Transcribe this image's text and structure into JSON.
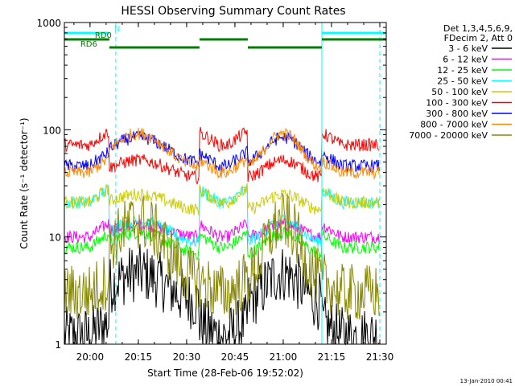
{
  "chart_data": {
    "type": "line",
    "title": "HESSI Observing Summary Count Rates",
    "xlabel": "Start Time (28-Feb-06 19:52:02)",
    "ylabel": "Count Rate (s⁻¹ detector⁻¹)",
    "y_scale": "log",
    "ylim": [
      1,
      1000
    ],
    "xlim": [
      "19:52:02",
      "21:32:00"
    ],
    "x_ticks": [
      "20:00",
      "20:15",
      "20:30",
      "20:45",
      "21:00",
      "21:15",
      "21:30"
    ],
    "y_ticks": [
      "1",
      "10",
      "100",
      "1000"
    ],
    "footer": "13-Jan-2010 00:41",
    "legend_header": [
      "Det 1,3,4,5,6,9,",
      "FDecim 2, Att 0"
    ],
    "legend_position": "right",
    "series": [
      {
        "name": "3 - 6 keV",
        "color": "#000000",
        "night": 1.2,
        "day": [
          2.5,
          4.6
        ]
      },
      {
        "name": "6 - 12 keV",
        "color": "#ff00ff",
        "night": 10,
        "day": [
          10,
          13
        ]
      },
      {
        "name": "12 - 25 keV",
        "color": "#00ff00",
        "night": 8,
        "day": [
          7,
          11
        ]
      },
      {
        "name": "25 - 50 keV",
        "color": "#00ffff",
        "night": 21,
        "day": [
          9,
          14
        ]
      },
      {
        "name": "50 - 100 keV",
        "color": "#cccc00",
        "night": 21,
        "day": [
          18,
          25
        ]
      },
      {
        "name": "100 - 300 keV",
        "color": "#ff0000",
        "night": 72,
        "day": [
          36,
          52
        ]
      },
      {
        "name": "300 - 800 keV",
        "color": "#0000ff",
        "night": 46,
        "day": [
          50,
          85
        ]
      },
      {
        "name": "800 - 7000 keV",
        "color": "#ff8800",
        "night": 40,
        "day": [
          45,
          92
        ]
      },
      {
        "name": "7000 - 20000 keV",
        "color": "#888800",
        "night": 3,
        "day": [
          4,
          14
        ]
      }
    ],
    "orbit": {
      "day_intervals": [
        [
          "20:06",
          "20:34"
        ],
        [
          "20:49",
          "21:12"
        ]
      ],
      "peaks": [
        "20:15",
        "21:00"
      ]
    },
    "flag_bars": [
      {
        "label": "N",
        "color": "#00ffff",
        "intervals": [
          [
            "19:52",
            "20:06"
          ],
          [
            "21:12",
            "21:32"
          ]
        ]
      },
      {
        "label": "RD0",
        "color": "#008000",
        "intervals": [
          [
            "19:52",
            "20:06"
          ],
          [
            "20:34",
            "20:49"
          ],
          [
            "21:12",
            "21:32"
          ]
        ]
      },
      {
        "label": "RD6",
        "color": "#008000",
        "intervals": [
          [
            "20:06",
            "20:34"
          ],
          [
            "20:49",
            "21:12"
          ]
        ]
      }
    ],
    "marker_lines": [
      {
        "style": "solid",
        "color": "#00ffff",
        "times": [
          "19:52",
          "21:12"
        ]
      },
      {
        "style": "dashed",
        "color": "#00ffff",
        "times": [
          "20:08",
          "21:30"
        ]
      }
    ]
  }
}
